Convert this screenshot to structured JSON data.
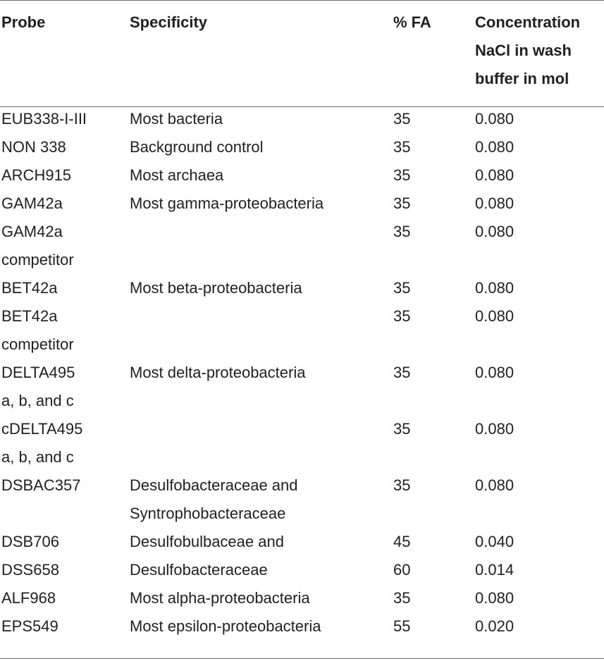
{
  "table": {
    "headers": {
      "probe": "Probe",
      "specificity": "Specificity",
      "fa": "% FA",
      "concentration": [
        "Concentration",
        "NaCl in wash",
        "buffer in mol"
      ]
    },
    "rows": [
      {
        "probe": [
          "EUB338-I-III"
        ],
        "specificity": [
          "Most bacteria"
        ],
        "fa": "35",
        "nacl": "0.080"
      },
      {
        "probe": [
          "NON 338"
        ],
        "specificity": [
          "Background control"
        ],
        "fa": "35",
        "nacl": "0.080"
      },
      {
        "probe": [
          "ARCH915"
        ],
        "specificity": [
          "Most archaea"
        ],
        "fa": "35",
        "nacl": "0.080"
      },
      {
        "probe": [
          "GAM42a"
        ],
        "specificity": [
          "Most gamma-proteobacteria"
        ],
        "fa": "35",
        "nacl": "0.080"
      },
      {
        "probe": [
          "GAM42a",
          "competitor"
        ],
        "specificity": [],
        "fa": "35",
        "nacl": "0.080"
      },
      {
        "probe": [
          "BET42a"
        ],
        "specificity": [
          "Most beta-proteobacteria"
        ],
        "fa": "35",
        "nacl": "0.080"
      },
      {
        "probe": [
          "BET42a",
          "competitor"
        ],
        "specificity": [],
        "fa": "35",
        "nacl": "0.080"
      },
      {
        "probe": [
          "DELTA495",
          "a, b, and c"
        ],
        "specificity": [
          "Most delta-proteobacteria"
        ],
        "fa": "35",
        "nacl": "0.080"
      },
      {
        "probe": [
          "cDELTA495",
          "a, b, and c"
        ],
        "specificity": [],
        "fa": "35",
        "nacl": "0.080"
      },
      {
        "probe": [
          "DSBAC357"
        ],
        "specificity": [
          "Desulfobacteraceae and",
          "Syntrophobacteraceae"
        ],
        "fa": "35",
        "nacl": "0.080"
      },
      {
        "probe": [
          "DSB706"
        ],
        "specificity": [
          "Desulfobulbaceae and"
        ],
        "fa": "45",
        "nacl": "0.040"
      },
      {
        "probe": [
          "DSS658"
        ],
        "specificity": [
          "Desulfobacteraceae"
        ],
        "fa": "60",
        "nacl": "0.014"
      },
      {
        "probe": [
          "ALF968"
        ],
        "specificity": [
          "Most alpha-proteobacteria"
        ],
        "fa": "35",
        "nacl": "0.080"
      },
      {
        "probe": [
          "EPS549"
        ],
        "specificity": [
          "Most epsilon-proteobacteria"
        ],
        "fa": "55",
        "nacl": "0.020"
      }
    ]
  }
}
